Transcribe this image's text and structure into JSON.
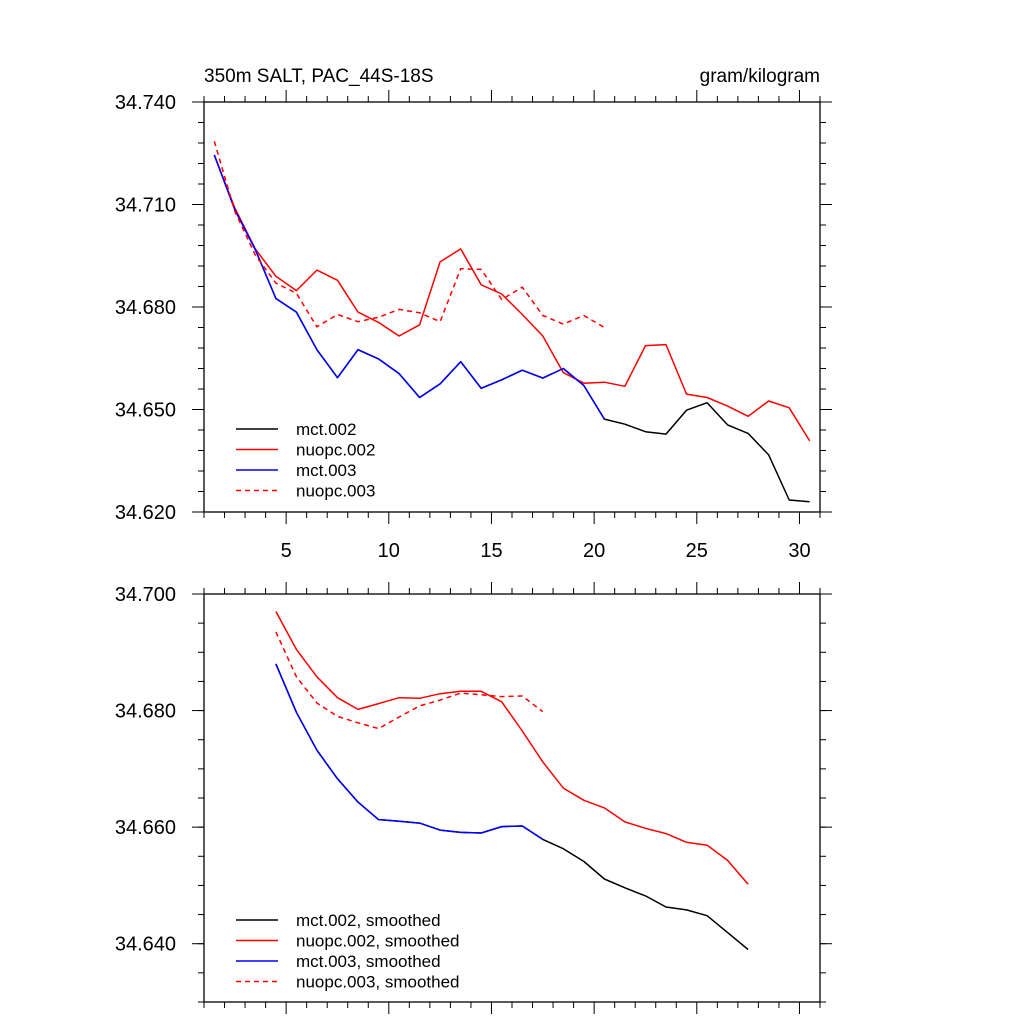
{
  "chart_data": [
    {
      "type": "line",
      "title": "350m SALT, PAC_44S-18S",
      "units": "gram/kilogram",
      "xlim": [
        1,
        31
      ],
      "ylim": [
        34.62,
        34.74
      ],
      "xticks": [
        5,
        10,
        15,
        20,
        25,
        30
      ],
      "yticks": [
        "34.620",
        "34.650",
        "34.680",
        "34.710",
        "34.740"
      ],
      "legend_position": "bottom-left",
      "series": [
        {
          "name": "mct.002",
          "color": "#000000",
          "dash": "solid",
          "x": [
            1.5,
            2.5,
            3.5,
            4.5,
            5.5,
            6.5,
            7.5,
            8.5,
            9.5,
            10.5,
            11.5,
            12.5,
            13.5,
            14.5,
            15.5,
            16.5,
            17.5,
            18.5,
            19.5,
            20.5,
            21.5,
            22.5,
            23.5,
            24.5,
            25.5,
            26.5,
            27.5,
            28.5,
            29.5,
            30.5
          ],
          "y": [
            34.7245,
            34.7085,
            34.6968,
            34.6825,
            34.6785,
            34.6675,
            34.6593,
            34.6675,
            34.6648,
            34.6605,
            34.6535,
            34.6575,
            34.664,
            34.6562,
            34.6587,
            34.6615,
            34.6592,
            34.662,
            34.657,
            34.6472,
            34.6457,
            34.6435,
            34.6428,
            34.6498,
            34.652,
            34.6455,
            34.643,
            34.6367,
            34.6235,
            34.623
          ]
        },
        {
          "name": "nuopc.002",
          "color": "#ff0000",
          "dash": "solid",
          "x": [
            1.5,
            2.5,
            3.5,
            4.5,
            5.5,
            6.5,
            7.5,
            8.5,
            9.5,
            10.5,
            11.5,
            12.5,
            13.5,
            14.5,
            15.5,
            16.5,
            17.5,
            18.5,
            19.5,
            20.5,
            21.5,
            22.5,
            23.5,
            24.5,
            25.5,
            26.5,
            27.5,
            28.5,
            29.5,
            30.5
          ],
          "y": [
            34.7245,
            34.709,
            34.697,
            34.689,
            34.6848,
            34.6908,
            34.6878,
            34.6785,
            34.6755,
            34.6715,
            34.6748,
            34.6932,
            34.697,
            34.6865,
            34.6838,
            34.6778,
            34.6715,
            34.6608,
            34.6577,
            34.658,
            34.6568,
            34.6687,
            34.669,
            34.6545,
            34.6535,
            34.651,
            34.648,
            34.6525,
            34.6505,
            34.6408
          ]
        },
        {
          "name": "mct.003",
          "color": "#0000ff",
          "dash": "solid",
          "x": [
            1.5,
            2.5,
            3.5,
            4.5,
            5.5,
            6.5,
            7.5,
            8.5,
            9.5,
            10.5,
            11.5,
            12.5,
            13.5,
            14.5,
            15.5,
            16.5,
            17.5,
            18.5,
            19.5,
            20.5
          ],
          "y": [
            34.7245,
            34.7085,
            34.6968,
            34.6825,
            34.6785,
            34.6675,
            34.6593,
            34.6675,
            34.6648,
            34.6605,
            34.6535,
            34.6575,
            34.664,
            34.6562,
            34.6587,
            34.6615,
            34.6592,
            34.662,
            34.657,
            34.6472
          ]
        },
        {
          "name": "nuopc.003",
          "color": "#ff0000",
          "dash": "dashed",
          "x": [
            1.5,
            2.5,
            3.5,
            4.5,
            5.5,
            6.5,
            7.5,
            8.5,
            9.5,
            10.5,
            11.5,
            12.5,
            13.5,
            14.5,
            15.5,
            16.5,
            17.5,
            18.5,
            19.5,
            20.5
          ],
          "y": [
            34.7285,
            34.708,
            34.6952,
            34.687,
            34.684,
            34.6742,
            34.6778,
            34.6757,
            34.677,
            34.6793,
            34.6783,
            34.6757,
            34.6912,
            34.691,
            34.6822,
            34.6858,
            34.6775,
            34.675,
            34.6775,
            34.674
          ]
        }
      ]
    },
    {
      "type": "line",
      "xlim": [
        1,
        31
      ],
      "ylim": [
        34.63,
        34.7
      ],
      "xticks": [
        5,
        10,
        15,
        20,
        25,
        30
      ],
      "yticks": [
        "34.640",
        "34.660",
        "34.680",
        "34.700"
      ],
      "legend_position": "bottom-left",
      "series": [
        {
          "name": "mct.002, smoothed",
          "color": "#000000",
          "dash": "solid",
          "x": [
            4.5,
            5.5,
            6.5,
            7.5,
            8.5,
            9.5,
            10.5,
            11.5,
            12.5,
            13.5,
            14.5,
            15.5,
            16.5,
            17.5,
            18.5,
            19.5,
            20.5,
            21.5,
            22.5,
            23.5,
            24.5,
            25.5,
            26.5,
            27.5
          ],
          "y": [
            34.688,
            34.6797,
            34.6732,
            34.6683,
            34.6643,
            34.6613,
            34.661,
            34.6607,
            34.6595,
            34.6591,
            34.659,
            34.6601,
            34.6602,
            34.6579,
            34.6563,
            34.6541,
            34.6511,
            34.6496,
            34.6482,
            34.6463,
            34.6458,
            34.6448,
            34.6419,
            34.639
          ]
        },
        {
          "name": "nuopc.002, smoothed",
          "color": "#ff0000",
          "dash": "solid",
          "x": [
            4.5,
            5.5,
            6.5,
            7.5,
            8.5,
            9.5,
            10.5,
            11.5,
            12.5,
            13.5,
            14.5,
            15.5,
            16.5,
            17.5,
            18.5,
            19.5,
            20.5,
            21.5,
            22.5,
            23.5,
            24.5,
            25.5,
            26.5,
            27.5
          ],
          "y": [
            34.697,
            34.6905,
            34.6858,
            34.6822,
            34.6802,
            34.6812,
            34.6822,
            34.6821,
            34.6829,
            34.6833,
            34.6833,
            34.6815,
            34.6765,
            34.6712,
            34.6667,
            34.6646,
            34.6633,
            34.6609,
            34.6598,
            34.6589,
            34.6574,
            34.6569,
            34.6543,
            34.6502
          ]
        },
        {
          "name": "mct.003, smoothed",
          "color": "#0000ff",
          "dash": "solid",
          "x": [
            4.5,
            5.5,
            6.5,
            7.5,
            8.5,
            9.5,
            10.5,
            11.5,
            12.5,
            13.5,
            14.5,
            15.5,
            16.5,
            17.5
          ],
          "y": [
            34.688,
            34.6797,
            34.6732,
            34.6683,
            34.6643,
            34.6613,
            34.661,
            34.6607,
            34.6595,
            34.6591,
            34.659,
            34.6601,
            34.6602,
            34.6579
          ]
        },
        {
          "name": "nuopc.003, smoothed",
          "color": "#ff0000",
          "dash": "dashed",
          "x": [
            4.5,
            5.5,
            6.5,
            7.5,
            8.5,
            9.5,
            10.5,
            11.5,
            12.5,
            13.5,
            14.5,
            15.5,
            16.5,
            17.5
          ],
          "y": [
            34.6935,
            34.6858,
            34.6813,
            34.679,
            34.6779,
            34.6769,
            34.6789,
            34.6808,
            34.6818,
            34.683,
            34.6827,
            34.6824,
            34.6825,
            34.6798
          ]
        }
      ]
    }
  ]
}
